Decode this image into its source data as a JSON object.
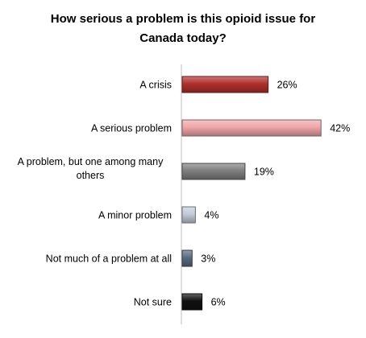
{
  "chart_data": {
    "type": "bar",
    "orientation": "horizontal",
    "title_lines": [
      "How serious a problem is this opioid issue for",
      "Canada today?"
    ],
    "categories": [
      [
        "A crisis"
      ],
      [
        "A serious problem"
      ],
      [
        "A problem, but one among many",
        "others"
      ],
      [
        "A minor problem"
      ],
      [
        "Not much of a problem at all"
      ],
      [
        "Not sure"
      ]
    ],
    "values": [
      26,
      42,
      19,
      4,
      3,
      6
    ],
    "value_labels": [
      "26%",
      "42%",
      "19%",
      "4%",
      "3%",
      "6%"
    ],
    "bar_colors": [
      "#b0302b",
      "#f0a6a8",
      "#7f7f7f",
      "#c3cbd9",
      "#596b82",
      "#111111"
    ],
    "value_unit": "%",
    "grid": false,
    "legend": "none"
  }
}
